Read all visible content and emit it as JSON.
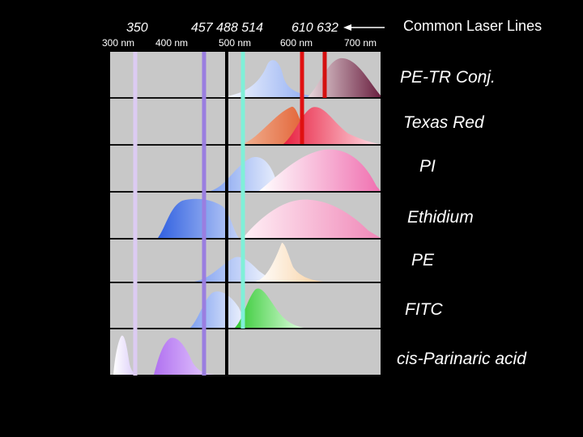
{
  "top_laser_labels": {
    "l350": "350",
    "l457_488_514": "457 488  514",
    "l610_632": "610  632"
  },
  "axis_labels": {
    "nm300": "300 nm",
    "nm400": "400 nm",
    "nm500": "500 nm",
    "nm600": "600 nm",
    "nm700": "700 nm"
  },
  "title": "Common Laser Lines",
  "dyes": {
    "pe_tr": "PE-TR Conj.",
    "texas_red": "Texas Red",
    "pi": "PI",
    "ethidium": "Ethidium",
    "pe": "PE",
    "fitc": "FITC",
    "cis_parinaric": "cis-Parinaric acid"
  },
  "colors": {
    "background": "#000000",
    "panel_gray": "#c8c8c8",
    "line_350": "#d9c9f0",
    "line_457": "#9a7ee0",
    "line_488": "#7ff0d8",
    "line_514": "#000000",
    "line_610": "#e01010",
    "line_632": "#d41010"
  }
}
